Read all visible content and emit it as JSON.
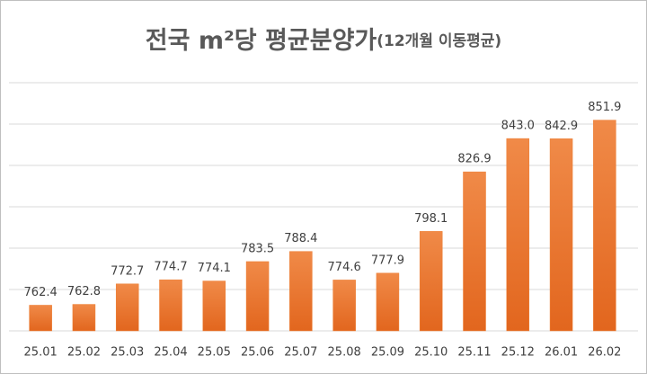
{
  "chart_data": {
    "type": "bar",
    "title": "전국 m²당 평균분양가",
    "subtitle": "(12개월 이동평균)",
    "categories": [
      "25.01",
      "25.02",
      "25.03",
      "25.04",
      "25.05",
      "25.06",
      "25.07",
      "25.08",
      "25.09",
      "25.10",
      "25.11",
      "25.12",
      "26.01",
      "26.02"
    ],
    "values": [
      762.4,
      762.8,
      772.7,
      774.7,
      774.1,
      783.5,
      788.4,
      774.6,
      777.9,
      798.1,
      826.9,
      843.0,
      842.9,
      851.9
    ],
    "value_labels": [
      "762.4",
      "762.8",
      "772.7",
      "774.7",
      "774.1",
      "783.5",
      "788.4",
      "774.6",
      "777.9",
      "798.1",
      "826.9",
      "843.0",
      "842.9",
      "851.9"
    ],
    "color": "#ed7d31",
    "ylim": [
      750,
      870
    ],
    "ygrid": [
      750,
      770,
      790,
      810,
      830,
      850,
      870
    ],
    "grid": true
  }
}
